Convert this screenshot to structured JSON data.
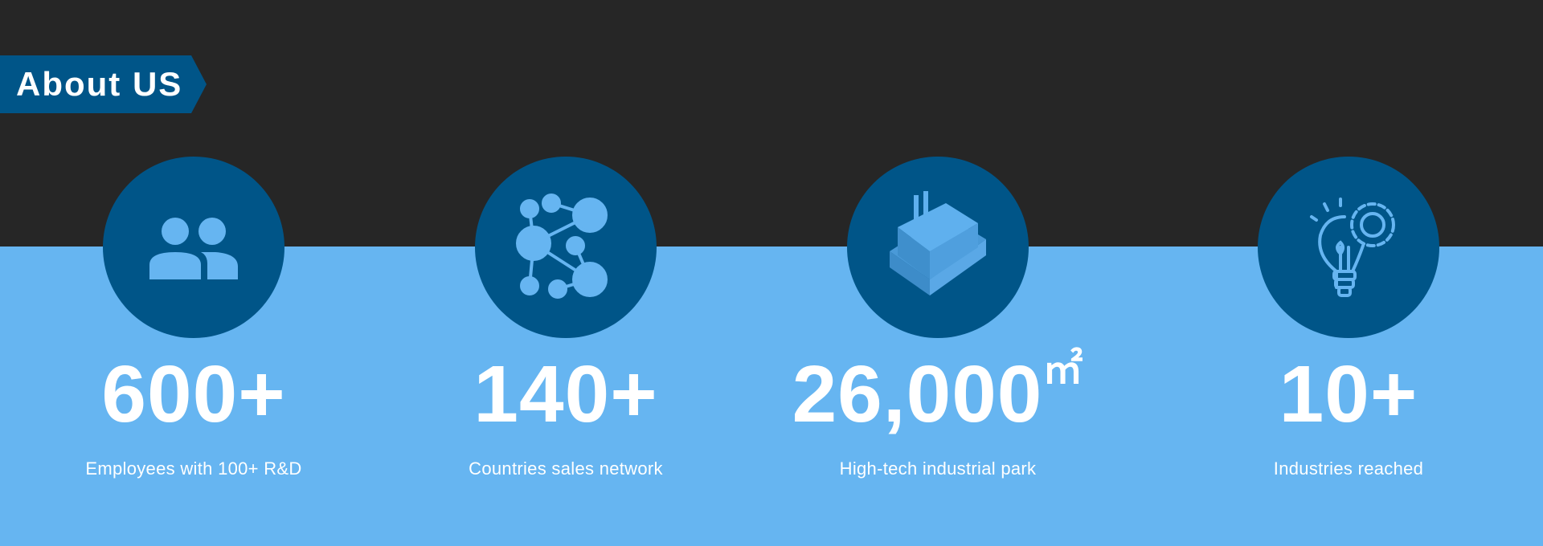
{
  "header": {
    "title": "About US"
  },
  "colors": {
    "dark": "#262626",
    "light": "#66b5f1",
    "accent": "#005588",
    "icon": "#5fb0ee"
  },
  "stats": [
    {
      "icon": "people-icon",
      "value": "600+",
      "label": "Employees with 100+ R&D"
    },
    {
      "icon": "network-icon",
      "value": "140+",
      "label": "Countries sales network"
    },
    {
      "icon": "building-icon",
      "value": "26,000",
      "unit": "㎡",
      "label": "High-tech industrial park"
    },
    {
      "icon": "lightbulb-gear-icon",
      "value": "10+",
      "label": "Industries reached"
    }
  ]
}
